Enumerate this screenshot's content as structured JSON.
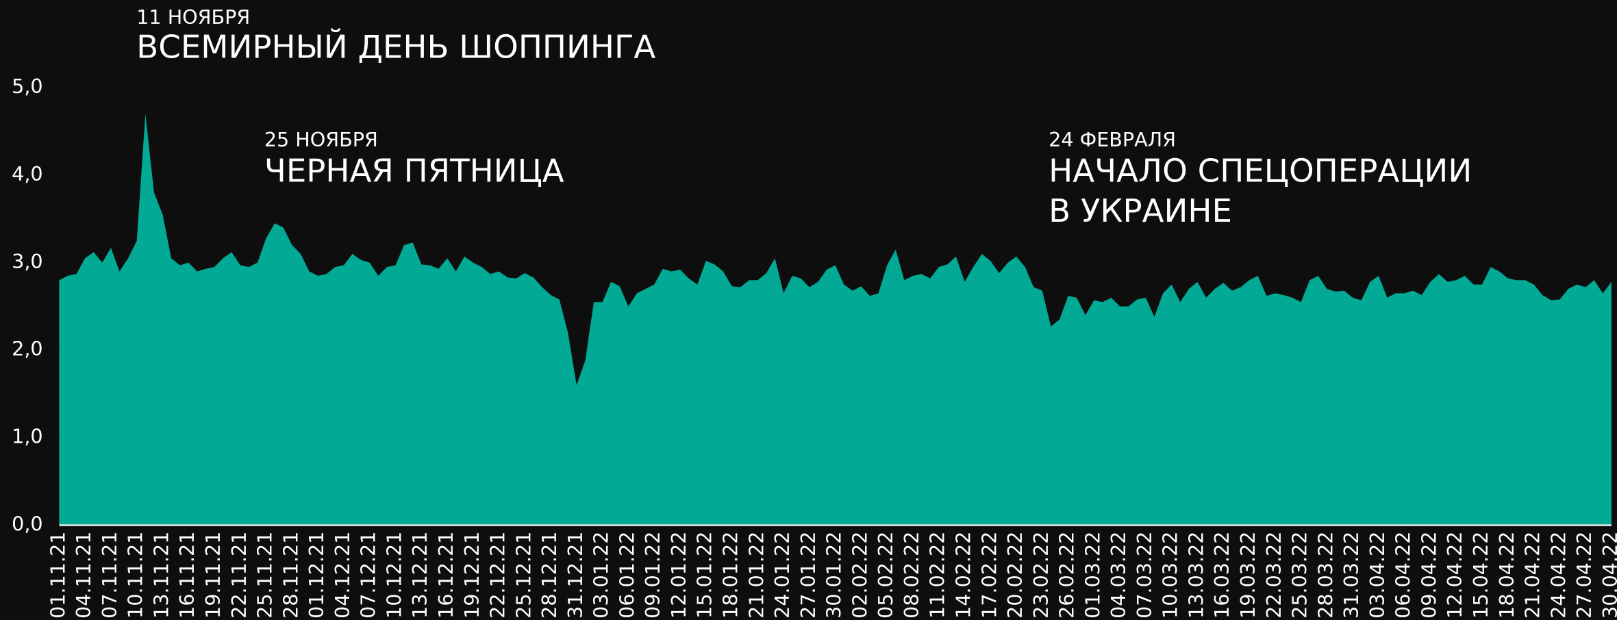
{
  "chart_data": {
    "type": "area",
    "color": "#02a994",
    "annotations": [
      {
        "date": "11 НОЯБРЯ",
        "lines": [
          "ВСЕМИРНЫЙ ДЕНЬ ШОППИНГА"
        ]
      },
      {
        "date": "25 НОЯБРЯ",
        "lines": [
          "ЧЕРНАЯ ПЯТНИЦА"
        ]
      },
      {
        "date": "24 ФЕВРАЛЯ",
        "lines": [
          "НАЧАЛО СПЕЦОПЕРАЦИИ",
          "В УКРАИНЕ"
        ]
      }
    ],
    "ylim": [
      0,
      5
    ],
    "yticks": [
      {
        "value": 0,
        "label": "0,0"
      },
      {
        "value": 1,
        "label": "1,0"
      },
      {
        "value": 2,
        "label": "2,0"
      },
      {
        "value": 3,
        "label": "3,0"
      },
      {
        "value": 4,
        "label": "4,0"
      },
      {
        "value": 5,
        "label": "5,0"
      }
    ],
    "grid": false,
    "categories": [
      "01.11.21",
      null,
      null,
      "04.11.21",
      null,
      null,
      "07.11.21",
      null,
      null,
      "10.11.21",
      null,
      null,
      "13.11.21",
      null,
      null,
      "16.11.21",
      null,
      null,
      "19.11.21",
      null,
      null,
      "22.11.21",
      null,
      null,
      "25.11.21",
      null,
      null,
      "28.11.21",
      null,
      null,
      "01.12.21",
      null,
      null,
      "04.12.21",
      null,
      null,
      "07.12.21",
      null,
      null,
      "10.12.21",
      null,
      null,
      "13.12.21",
      null,
      null,
      "16.12.21",
      null,
      null,
      "19.12.21",
      null,
      null,
      "22.12.21",
      null,
      null,
      "25.12.21",
      null,
      null,
      "28.12.21",
      null,
      null,
      "31.12.21",
      null,
      null,
      "03.01.22",
      null,
      null,
      "06.01.22",
      null,
      null,
      "09.01.22",
      null,
      null,
      "12.01.22",
      null,
      null,
      "15.01.22",
      null,
      null,
      "18.01.22",
      null,
      null,
      "21.01.22",
      null,
      null,
      "24.01.22",
      null,
      null,
      "27.01.22",
      null,
      null,
      "30.01.22",
      null,
      null,
      "02.02.22",
      null,
      null,
      "05.02.22",
      null,
      null,
      "08.02.22",
      null,
      null,
      "11.02.22",
      null,
      null,
      "14.02.22",
      null,
      null,
      "17.02.22",
      null,
      null,
      "20.02.22",
      null,
      null,
      "23.02.22",
      null,
      null,
      "26.02.22",
      null,
      null,
      "01.03.22",
      null,
      null,
      "04.03.22",
      null,
      null,
      "07.03.22",
      null,
      null,
      "10.03.22",
      null,
      null,
      "13.03.22",
      null,
      null,
      "16.03.22",
      null,
      null,
      "19.03.22",
      null,
      null,
      "22.03.22",
      null,
      null,
      "25.03.22",
      null,
      null,
      "28.03.22",
      null,
      null,
      "31.03.22",
      null,
      null,
      "03.04.22",
      null,
      null,
      "06.04.22",
      null,
      null,
      "09.04.22",
      null,
      null,
      "12.04.22",
      null,
      null,
      "15.04.22",
      null,
      null,
      "18.04.22",
      null,
      null,
      "21.04.22",
      null,
      null,
      "24.04.22",
      null,
      null,
      "27.04.22",
      null,
      null,
      "30.04.22"
    ],
    "values": [
      2.8,
      2.85,
      2.87,
      3.05,
      3.12,
      3.0,
      3.17,
      2.9,
      3.05,
      3.25,
      4.7,
      3.8,
      3.55,
      3.05,
      2.97,
      3.0,
      2.9,
      2.93,
      2.95,
      3.05,
      3.12,
      2.97,
      2.95,
      3.0,
      3.28,
      3.45,
      3.4,
      3.2,
      3.1,
      2.9,
      2.85,
      2.87,
      2.95,
      2.97,
      3.1,
      3.03,
      3.0,
      2.85,
      2.95,
      2.97,
      3.2,
      3.23,
      2.98,
      2.97,
      2.93,
      3.05,
      2.9,
      3.07,
      3.0,
      2.95,
      2.87,
      2.9,
      2.83,
      2.82,
      2.88,
      2.83,
      2.72,
      2.63,
      2.58,
      2.2,
      1.6,
      1.88,
      2.55,
      2.55,
      2.78,
      2.73,
      2.5,
      2.65,
      2.7,
      2.75,
      2.93,
      2.9,
      2.92,
      2.82,
      2.75,
      3.02,
      2.98,
      2.9,
      2.73,
      2.72,
      2.8,
      2.8,
      2.88,
      3.05,
      2.65,
      2.85,
      2.82,
      2.72,
      2.78,
      2.92,
      2.97,
      2.75,
      2.68,
      2.73,
      2.62,
      2.65,
      2.97,
      3.15,
      2.8,
      2.85,
      2.87,
      2.82,
      2.95,
      2.98,
      3.07,
      2.78,
      2.95,
      3.1,
      3.02,
      2.88,
      3.0,
      3.07,
      2.95,
      2.72,
      2.68,
      2.27,
      2.35,
      2.62,
      2.6,
      2.4,
      2.57,
      2.55,
      2.6,
      2.5,
      2.5,
      2.58,
      2.6,
      2.38,
      2.65,
      2.75,
      2.55,
      2.7,
      2.78,
      2.6,
      2.7,
      2.77,
      2.68,
      2.72,
      2.8,
      2.85,
      2.62,
      2.65,
      2.63,
      2.6,
      2.55,
      2.8,
      2.85,
      2.7,
      2.67,
      2.68,
      2.6,
      2.57,
      2.78,
      2.85,
      2.6,
      2.65,
      2.65,
      2.68,
      2.63,
      2.78,
      2.87,
      2.78,
      2.8,
      2.85,
      2.75,
      2.75,
      2.95,
      2.9,
      2.82,
      2.8,
      2.8,
      2.75,
      2.63,
      2.57,
      2.58,
      2.7,
      2.75,
      2.72,
      2.8,
      2.65,
      2.78
    ]
  }
}
